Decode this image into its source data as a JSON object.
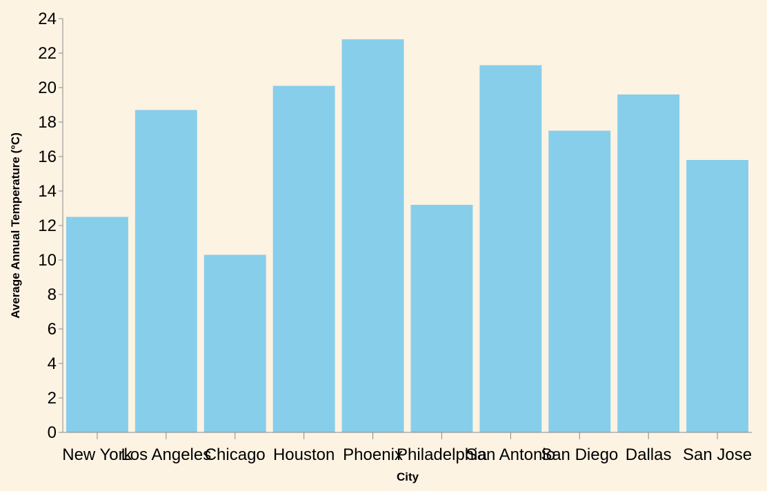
{
  "colors": {
    "background": "#fdf3e3",
    "bar": "#87ceeb",
    "axis": "#888888",
    "text": "#000000"
  },
  "chart_data": {
    "type": "bar",
    "title": "",
    "xlabel": "City",
    "ylabel": "Average Annual Temperature (°C)",
    "categories": [
      "New York",
      "Los Angeles",
      "Chicago",
      "Houston",
      "Phoenix",
      "Philadelphia",
      "San Antonio",
      "San Diego",
      "Dallas",
      "San Jose"
    ],
    "values": [
      12.5,
      18.7,
      10.3,
      20.1,
      22.8,
      13.2,
      21.3,
      17.5,
      19.6,
      15.8
    ],
    "ylim": [
      0,
      24
    ],
    "yticks": [
      0,
      2,
      4,
      6,
      8,
      10,
      12,
      14,
      16,
      18,
      20,
      22,
      24
    ],
    "grid": false,
    "legend": "none"
  }
}
